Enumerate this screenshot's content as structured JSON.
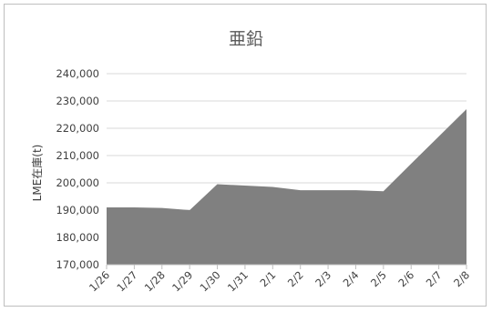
{
  "chart_data": {
    "type": "area",
    "title": "亜鉛",
    "xlabel": "",
    "ylabel": "LME在庫(t)",
    "categories": [
      "1/26",
      "1/27",
      "1/28",
      "1/29",
      "1/30",
      "1/31",
      "2/1",
      "2/2",
      "2/3",
      "2/4",
      "2/5",
      "2/6",
      "2/7",
      "2/8"
    ],
    "values": [
      191000,
      191000,
      190800,
      190000,
      199500,
      199000,
      198500,
      197300,
      197300,
      197300,
      196900,
      207000,
      217000,
      227000
    ],
    "ylim": [
      170000,
      240000
    ],
    "yticks": [
      "170,000",
      "180,000",
      "190,000",
      "200,000",
      "210,000",
      "220,000",
      "230,000",
      "240,000"
    ],
    "grid": true,
    "legend": "none",
    "colors": {
      "fill": "#808080",
      "grid": "#d9d9d9",
      "axis": "#bfbfbf"
    }
  }
}
